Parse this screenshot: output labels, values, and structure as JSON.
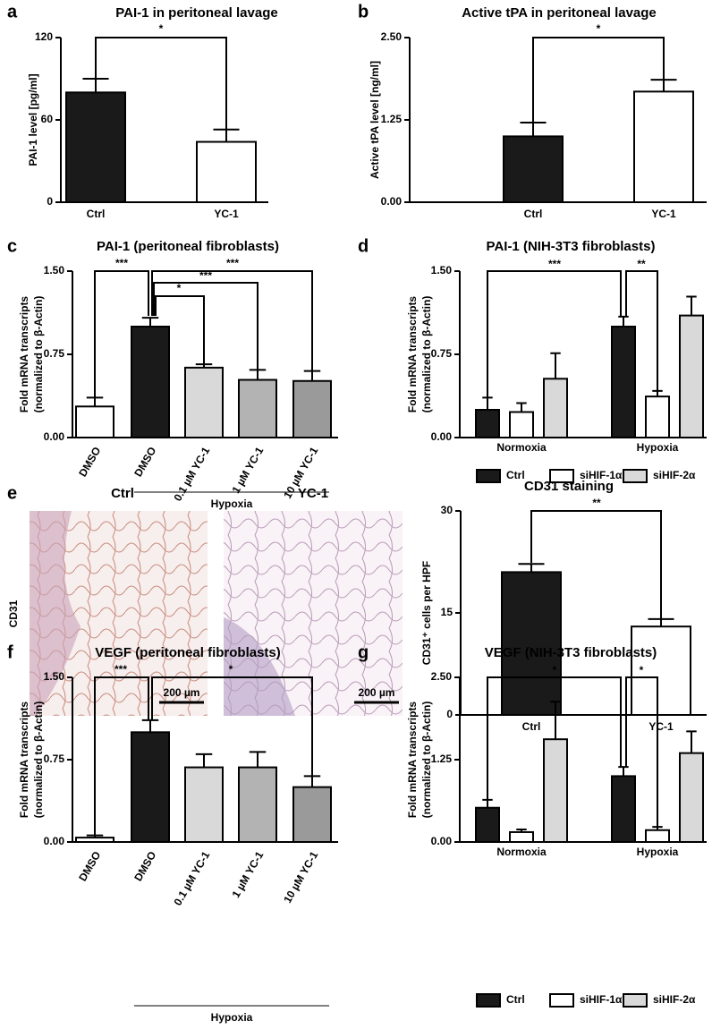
{
  "chart_data": [
    {
      "type": "bar",
      "panel": "a",
      "title": "PAI-1 in peritoneal lavage",
      "ylabel": "PAI-1 level  [pg/ml]",
      "categories": [
        "Ctrl",
        "YC-1"
      ],
      "values": [
        80,
        44
      ],
      "errors": [
        10,
        9
      ],
      "colors": [
        "#1a1a1a",
        "#ffffff"
      ],
      "ylim": [
        0,
        120
      ],
      "yticks": [
        0,
        60,
        120
      ],
      "significance": [
        "*"
      ]
    },
    {
      "type": "bar",
      "panel": "b",
      "title": "Active tPA in peritoneal lavage",
      "ylabel": "Active tPA level  [ng/ml]",
      "categories": [
        "Ctrl",
        "YC-1"
      ],
      "values": [
        1.0,
        1.68
      ],
      "errors": [
        0.21,
        0.18
      ],
      "colors": [
        "#1a1a1a",
        "#ffffff"
      ],
      "ylim": [
        0,
        2.5
      ],
      "yticks": [
        {
          "value": 0,
          "label": "0.00"
        },
        {
          "value": 1.25,
          "label": "1.25"
        },
        {
          "value": 2.5,
          "label": "2.50"
        }
      ],
      "significance": [
        "*"
      ]
    },
    {
      "type": "bar",
      "panel": "c",
      "title": "PAI-1 (peritoneal fibroblasts)",
      "ylabel": [
        "Fold mRNA transcripts",
        "(normalized to β-Actin)"
      ],
      "categories": [
        "DMSO",
        "DMSO",
        "0.1 µM YC-1",
        "1 µM YC-1",
        "10 µM YC-1"
      ],
      "group_label": "Hypoxia",
      "values": [
        0.28,
        1.0,
        0.63,
        0.52,
        0.51
      ],
      "errors": [
        0.08,
        0.08,
        0.03,
        0.09,
        0.09
      ],
      "colors": [
        "#ffffff",
        "#1a1a1a",
        "#d9d9d9",
        "#b3b3b3",
        "#9a9a9a"
      ],
      "ylim": [
        0,
        1.5
      ],
      "yticks": [
        {
          "value": 0,
          "label": "0.00"
        },
        {
          "value": 0.75,
          "label": "0.75"
        },
        {
          "value": 1.5,
          "label": "1.50"
        }
      ],
      "significance": [
        "***",
        "***",
        "***",
        "*"
      ]
    },
    {
      "type": "grouped-bar",
      "panel": "d",
      "title": "PAI-1 (NIH-3T3 fibroblasts)",
      "ylabel": [
        "Fold mRNA transcripts",
        "(normalized to β-Actin)"
      ],
      "categories": [
        "Normoxia",
        "Hypoxia"
      ],
      "series": [
        {
          "name": "Ctrl",
          "color": "#1a1a1a",
          "values": [
            0.25,
            1.0
          ],
          "errors": [
            0.11,
            0.09
          ]
        },
        {
          "name": "siHIF-1α",
          "color": "#ffffff",
          "values": [
            0.23,
            0.37
          ],
          "errors": [
            0.08,
            0.05
          ]
        },
        {
          "name": "siHIF-2α",
          "color": "#d9d9d9",
          "values": [
            0.53,
            1.1
          ],
          "errors": [
            0.23,
            0.17
          ]
        }
      ],
      "legend": "bottom",
      "ylim": [
        0,
        1.5
      ],
      "yticks": [
        {
          "value": 0,
          "label": "0.00"
        },
        {
          "value": 0.75,
          "label": "0.75"
        },
        {
          "value": 1.5,
          "label": "1.50"
        }
      ],
      "significance": [
        "***",
        "**"
      ]
    },
    {
      "type": "bar",
      "panel": "e",
      "title": "CD31 staining",
      "ylabel": "CD31⁺ cells per HPF",
      "categories": [
        "Ctrl",
        "YC-1"
      ],
      "values": [
        21,
        13
      ],
      "errors": [
        1.2,
        1.1
      ],
      "colors": [
        "#1a1a1a",
        "#ffffff"
      ],
      "ylim": [
        0,
        30
      ],
      "yticks": [
        0,
        15,
        30
      ],
      "significance": [
        "**"
      ]
    },
    {
      "type": "bar",
      "panel": "f",
      "title": "VEGF (peritoneal fibroblasts)",
      "ylabel": [
        "Fold mRNA transcripts",
        "(normalized to β-Actin)"
      ],
      "categories": [
        "DMSO",
        "DMSO",
        "0.1 µM YC-1",
        "1 µM YC-1",
        "10 µM YC-1"
      ],
      "group_label": "Hypoxia",
      "values": [
        0.04,
        1.0,
        0.68,
        0.68,
        0.5
      ],
      "errors": [
        0.02,
        0.11,
        0.12,
        0.14,
        0.1
      ],
      "colors": [
        "#ffffff",
        "#1a1a1a",
        "#d9d9d9",
        "#b3b3b3",
        "#9a9a9a"
      ],
      "ylim": [
        0,
        1.5
      ],
      "yticks": [
        {
          "value": 0,
          "label": "0.00"
        },
        {
          "value": 0.75,
          "label": "0.75"
        },
        {
          "value": 1.5,
          "label": "1.50"
        }
      ],
      "significance": [
        "***",
        "*"
      ]
    },
    {
      "type": "grouped-bar",
      "panel": "g",
      "title": "VEGF (NIH-3T3 fibroblasts)",
      "ylabel": [
        "Fold mRNA transcripts",
        "(normalized to β-Actin)"
      ],
      "categories": [
        "Normoxia",
        "Hypoxia"
      ],
      "series": [
        {
          "name": "Ctrl",
          "color": "#1a1a1a",
          "values": [
            0.52,
            1.0
          ],
          "errors": [
            0.12,
            0.14
          ]
        },
        {
          "name": "siHIF-1α",
          "color": "#ffffff",
          "values": [
            0.15,
            0.18
          ],
          "errors": [
            0.04,
            0.05
          ]
        },
        {
          "name": "siHIF-2α",
          "color": "#d9d9d9",
          "values": [
            1.56,
            1.35
          ],
          "errors": [
            0.57,
            0.33
          ]
        }
      ],
      "legend": "bottom",
      "ylim": [
        0,
        2.5
      ],
      "yticks": [
        {
          "value": 0,
          "label": "0.00"
        },
        {
          "value": 1.25,
          "label": "1.25"
        },
        {
          "value": 2.5,
          "label": "2.50"
        }
      ],
      "significance": [
        "*",
        "*"
      ]
    }
  ],
  "image_panel": {
    "titles": [
      "Ctrl",
      "YC-1"
    ],
    "row_label": "CD31",
    "scale_bar": "200 µm"
  }
}
